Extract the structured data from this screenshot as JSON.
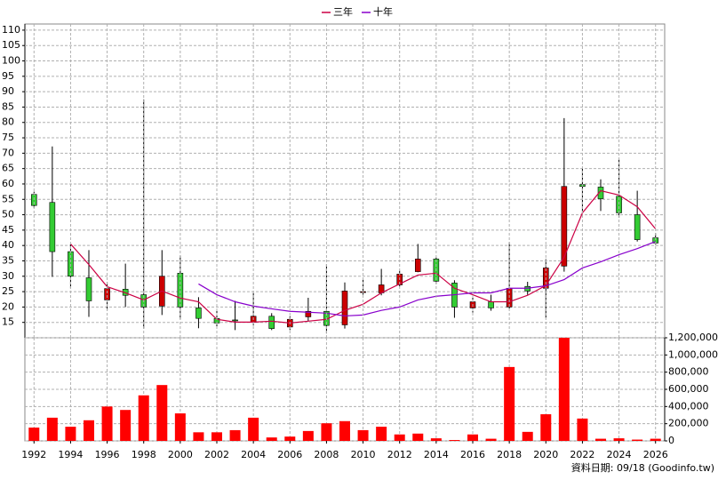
{
  "chart_data": [
    {
      "type": "candlestick",
      "x": [
        1992,
        1993,
        1994,
        1995,
        1996,
        1997,
        1998,
        1999,
        2000,
        2001,
        2002,
        2003,
        2004,
        2005,
        2006,
        2007,
        2008,
        2009,
        2010,
        2011,
        2012,
        2013,
        2014,
        2015,
        2016,
        2017,
        2018,
        2019,
        2020,
        2021,
        2022,
        2023,
        2024,
        2025,
        2026
      ],
      "open": [
        56.6,
        54,
        38,
        29.5,
        22.3,
        25.8,
        24,
        20.3,
        31,
        19.7,
        16.3,
        15.8,
        15,
        17,
        13.5,
        16.8,
        18.6,
        14.2,
        24.8,
        24.6,
        27.2,
        31.5,
        35.6,
        27.8,
        19.7,
        21.7,
        20,
        26.7,
        26.1,
        33.3,
        59.8,
        59,
        56,
        50,
        42.5
      ],
      "high": [
        57.5,
        72.2,
        40.5,
        38.5,
        28.1,
        34.1,
        87.5,
        38.5,
        36.7,
        23.2,
        19,
        22,
        24.6,
        18,
        17,
        23,
        33.9,
        28,
        28.9,
        32.4,
        31.8,
        40.5,
        36.2,
        28.7,
        24,
        24,
        41,
        28.2,
        35.6,
        81.4,
        65,
        61.5,
        68,
        57.8,
        44
      ],
      "low": [
        52.2,
        29.8,
        26.1,
        16.8,
        18.9,
        20,
        13,
        17.4,
        16,
        13.1,
        13.4,
        12.5,
        14,
        12.5,
        12.5,
        15.4,
        11.4,
        13,
        24,
        23.8,
        26.6,
        31.3,
        27.5,
        16.5,
        18.2,
        18.8,
        19.4,
        24,
        16.5,
        31.5,
        50.6,
        51.2,
        49,
        41.3,
        40.2
      ],
      "close": [
        53,
        38,
        30,
        22,
        26,
        23.8,
        20,
        30,
        20,
        16.3,
        14.8,
        15.5,
        17,
        13,
        16,
        18.6,
        14,
        25.2,
        25,
        27.2,
        30.7,
        35.6,
        28.4,
        20,
        21.7,
        19.7,
        26.1,
        25.2,
        32.7,
        59.2,
        59.2,
        55.2,
        50.6,
        41.9,
        40.8
      ],
      "up_color": "#cc0000",
      "down_color": "#33cc33",
      "series": [
        {
          "name": "三年",
          "color": "#cc0044",
          "values": [
            null,
            null,
            40.5,
            33.8,
            26.6,
            24.6,
            22.3,
            25.2,
            22.9,
            21.7,
            16,
            15.1,
            15.1,
            15.4,
            14.8,
            15.4,
            16,
            18.9,
            20.9,
            24.6,
            27.5,
            30.4,
            31,
            26.1,
            24,
            21.7,
            21.7,
            23.8,
            27,
            36.2,
            50.6,
            57.8,
            56.4,
            52.6,
            45.4
          ]
        },
        {
          "name": "十年",
          "color": "#8800cc",
          "values": [
            null,
            null,
            null,
            null,
            null,
            null,
            null,
            null,
            null,
            27.5,
            24,
            21.7,
            20.3,
            19.4,
            18.6,
            18.3,
            18,
            17.1,
            17.4,
            18.9,
            20,
            22.3,
            23.5,
            24,
            24.6,
            24.6,
            26.1,
            26.1,
            26.9,
            28.9,
            32.7,
            34.7,
            37,
            39,
            41.3
          ]
        }
      ],
      "xlim": [
        1991.5,
        2026.5
      ],
      "ylim": [
        10,
        112
      ],
      "yticks": [
        15,
        20,
        25,
        30,
        35,
        40,
        45,
        50,
        55,
        60,
        65,
        70,
        75,
        80,
        85,
        90,
        95,
        100,
        105,
        110
      ],
      "grid": true,
      "legend": "top"
    },
    {
      "type": "bar",
      "x": [
        1992,
        1993,
        1994,
        1995,
        1996,
        1997,
        1998,
        1999,
        2000,
        2001,
        2002,
        2003,
        2004,
        2005,
        2006,
        2007,
        2008,
        2009,
        2010,
        2011,
        2012,
        2013,
        2014,
        2015,
        2016,
        2017,
        2018,
        2019,
        2020,
        2021,
        2022,
        2023,
        2024,
        2025,
        2026
      ],
      "values": [
        155000,
        270000,
        165000,
        240000,
        400000,
        360000,
        530000,
        650000,
        320000,
        100000,
        100000,
        125000,
        270000,
        40000,
        50000,
        115000,
        205000,
        230000,
        125000,
        165000,
        75000,
        85000,
        30000,
        10000,
        75000,
        25000,
        860000,
        105000,
        310000,
        1200000,
        260000,
        25000,
        30000,
        15000,
        25000
      ],
      "color": "#ff0000",
      "xlim": [
        1991.5,
        2026.5
      ],
      "xticks": [
        1992,
        1994,
        1996,
        1998,
        2000,
        2002,
        2004,
        2006,
        2008,
        2010,
        2012,
        2014,
        2016,
        2018,
        2020,
        2022,
        2024,
        2026
      ],
      "ylim": [
        0,
        1200000
      ],
      "yticks": [
        0,
        {
          "value": 200000,
          "label": "200,000"
        },
        {
          "value": 400000,
          "label": "400,000"
        },
        {
          "value": 600000,
          "label": "600,000"
        },
        {
          "value": 800000,
          "label": "800,000"
        },
        {
          "value": 1000000,
          "label": "1,000,000"
        },
        {
          "value": 1200000,
          "label": "1,200,000"
        }
      ],
      "grid": true
    }
  ],
  "footer": "資料日期: 09/18  (Goodinfo.tw)"
}
